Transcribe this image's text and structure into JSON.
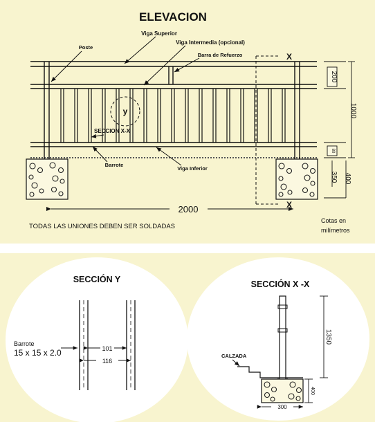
{
  "elevation": {
    "title": "ELEVACION",
    "labels": {
      "viga_superior": "Viga Superior",
      "viga_intermedia": "Viga Intermedia (opcional)",
      "poste": "Poste",
      "barra_refuerzo": "Barra de Refuerzo",
      "seccion_xx": "SECCION X-X",
      "barrote": "Barrote",
      "viga_inferior": "Viga Inferior",
      "detail_y": "y",
      "cut_x_top": "X",
      "cut_x_bottom": "X"
    },
    "dimensions": {
      "d200": "200",
      "d1000": "1000",
      "d80": "80",
      "d350": "350",
      "d400": "400",
      "d2000": "2000"
    },
    "note": "TODAS LAS UNIONES DEBEN SER SOLDADAS",
    "units_line1": "Cotas en",
    "units_line2": "milímetros"
  },
  "seccion_y": {
    "title": "SECCIÓN Y",
    "barrote_label": "Barrote",
    "barrote_size": "15 x 15 x 2.0",
    "d101": "101",
    "d116": "116"
  },
  "seccion_xx": {
    "title": "SECCIÓN X -X",
    "calzada": "CALZADA",
    "d1350": "1350",
    "d400": "400",
    "d300": "300"
  },
  "colors": {
    "background": "#f8f4cf",
    "ink": "#111111"
  }
}
